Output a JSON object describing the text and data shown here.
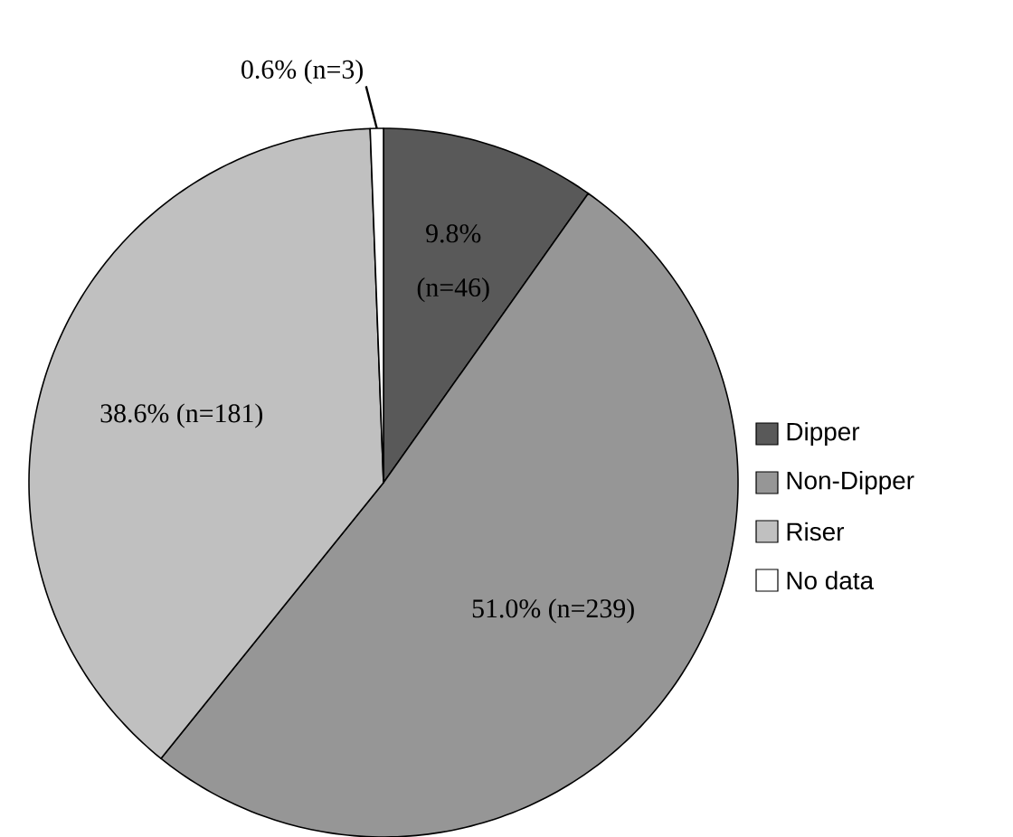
{
  "chart_data": {
    "type": "pie",
    "categories": [
      "Dipper",
      "Non-Dipper",
      "Riser",
      "No data"
    ],
    "values": [
      9.8,
      51.0,
      38.6,
      0.6
    ],
    "colors": [
      "#595959",
      "#969696",
      "#c0c0c0",
      "#ffffff"
    ],
    "value_labels": [
      "9.8% (n=46)",
      "51.0% (n=239)",
      "38.6% (n=181)",
      "0.6% (n=3)"
    ],
    "legend": "right"
  }
}
